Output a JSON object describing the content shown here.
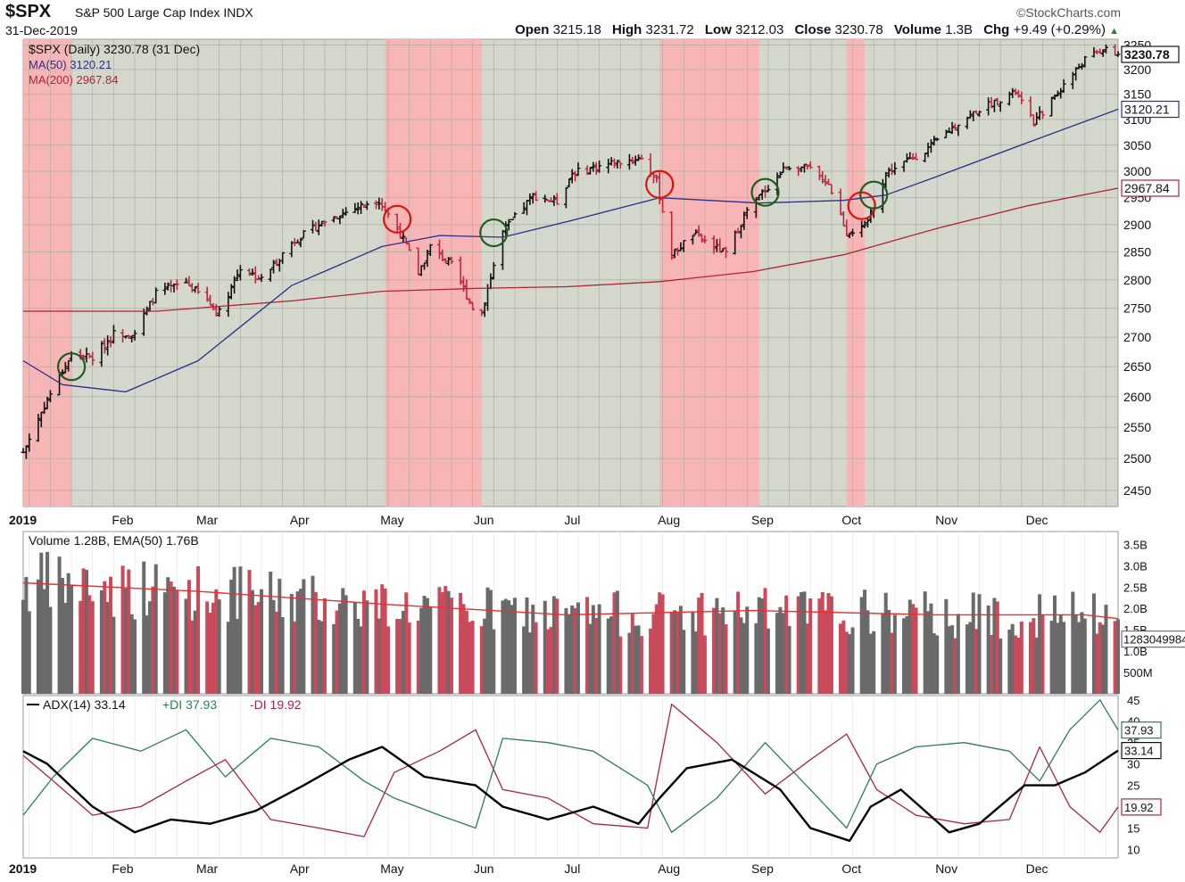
{
  "header": {
    "symbol": "$SPX",
    "name": "S&P 500 Large Cap Index",
    "exchange": "INDX",
    "date": "31-Dec-2019",
    "brand": "©StockCharts.com",
    "open_label": "Open",
    "open": "3215.18",
    "high_label": "High",
    "high": "3231.72",
    "low_label": "Low",
    "low": "3212.03",
    "close_label": "Close",
    "close": "3230.78",
    "volume_label": "Volume",
    "volume": "1.3B",
    "chg_label": "Chg",
    "chg": "+9.49 (+0.29%)"
  },
  "colors": {
    "panel_bg": "#d4d8cc",
    "red_band": "#f7b5b5",
    "up": "#111111",
    "down": "#c0283c",
    "ma50": "#2a2f8a",
    "ma200": "#b22234",
    "adx": "#000000",
    "plus_di": "#2e7d4f",
    "minus_di": "#a3234f",
    "vol_up": "#6a6a6a",
    "vol_down": "#c94a5a",
    "ema": "#e53030"
  },
  "chart_data": [
    {
      "type": "ohlc",
      "legend": [
        "$SPX (Daily) 3230.78 (31 Dec)",
        "MA(50) 3120.21",
        "MA(200) 2967.84"
      ],
      "x_labels": [
        "2019",
        "Feb",
        "Mar",
        "Apr",
        "May",
        "Jun",
        "Jul",
        "Aug",
        "Sep",
        "Oct",
        "Nov",
        "Dec"
      ],
      "y_ticks": [
        2450,
        2500,
        2550,
        2600,
        2650,
        2700,
        2750,
        2800,
        2850,
        2900,
        2950,
        3000,
        3050,
        3100,
        3150,
        3200,
        3250
      ],
      "ylim": [
        2425,
        3262
      ],
      "scale": "log",
      "last_price_tag": "3230.78",
      "ma50_tag": "3120.21",
      "ma200_tag": "2967.84",
      "close_series": [
        [
          "2019-01-02",
          2510
        ],
        [
          "2019-01-04",
          2532
        ],
        [
          "2019-01-10",
          2596
        ],
        [
          "2019-01-18",
          2670
        ],
        [
          "2019-01-25",
          2665
        ],
        [
          "2019-02-01",
          2706
        ],
        [
          "2019-02-08",
          2708
        ],
        [
          "2019-02-15",
          2776
        ],
        [
          "2019-02-25",
          2796
        ],
        [
          "2019-03-08",
          2743
        ],
        [
          "2019-03-15",
          2822
        ],
        [
          "2019-03-22",
          2800
        ],
        [
          "2019-04-01",
          2867
        ],
        [
          "2019-04-12",
          2907
        ],
        [
          "2019-04-26",
          2940
        ],
        [
          "2019-04-30",
          2945
        ],
        [
          "2019-05-07",
          2884
        ],
        [
          "2019-05-13",
          2812
        ],
        [
          "2019-05-17",
          2860
        ],
        [
          "2019-05-24",
          2826
        ],
        [
          "2019-05-31",
          2752
        ],
        [
          "2019-06-03",
          2745
        ],
        [
          "2019-06-10",
          2886
        ],
        [
          "2019-06-20",
          2954
        ],
        [
          "2019-06-28",
          2942
        ],
        [
          "2019-07-03",
          2996
        ],
        [
          "2019-07-15",
          3014
        ],
        [
          "2019-07-26",
          3026
        ],
        [
          "2019-07-31",
          2980
        ],
        [
          "2019-08-05",
          2844
        ],
        [
          "2019-08-12",
          2883
        ],
        [
          "2019-08-23",
          2847
        ],
        [
          "2019-08-30",
          2926
        ],
        [
          "2019-09-12",
          3009
        ],
        [
          "2019-09-19",
          3006
        ],
        [
          "2019-09-26",
          2977
        ],
        [
          "2019-10-02",
          2887
        ],
        [
          "2019-10-08",
          2893
        ],
        [
          "2019-10-15",
          2996
        ],
        [
          "2019-10-28",
          3039
        ],
        [
          "2019-11-08",
          3093
        ],
        [
          "2019-11-15",
          3120
        ],
        [
          "2019-11-27",
          3154
        ],
        [
          "2019-12-03",
          3093
        ],
        [
          "2019-12-13",
          3169
        ],
        [
          "2019-12-20",
          3221
        ],
        [
          "2019-12-26",
          3240
        ],
        [
          "2019-12-31",
          3230.78
        ]
      ],
      "ma50_series": [
        [
          "2019-01-02",
          2660
        ],
        [
          "2019-01-15",
          2620
        ],
        [
          "2019-02-05",
          2608
        ],
        [
          "2019-03-01",
          2660
        ],
        [
          "2019-04-01",
          2790
        ],
        [
          "2019-05-01",
          2860
        ],
        [
          "2019-05-20",
          2880
        ],
        [
          "2019-06-10",
          2877
        ],
        [
          "2019-07-01",
          2905
        ],
        [
          "2019-08-01",
          2950
        ],
        [
          "2019-09-03",
          2940
        ],
        [
          "2019-10-01",
          2945
        ],
        [
          "2019-10-15",
          2955
        ],
        [
          "2019-11-01",
          2990
        ],
        [
          "2019-12-01",
          3055
        ],
        [
          "2019-12-31",
          3120.21
        ]
      ],
      "ma200_series": [
        [
          "2019-01-02",
          2745
        ],
        [
          "2019-02-15",
          2745
        ],
        [
          "2019-04-01",
          2763
        ],
        [
          "2019-05-01",
          2780
        ],
        [
          "2019-06-01",
          2785
        ],
        [
          "2019-07-01",
          2788
        ],
        [
          "2019-08-01",
          2797
        ],
        [
          "2019-09-01",
          2815
        ],
        [
          "2019-10-01",
          2845
        ],
        [
          "2019-11-01",
          2893
        ],
        [
          "2019-12-01",
          2935
        ],
        [
          "2019-12-31",
          2967.84
        ]
      ],
      "red_bands": [
        [
          "2019-01-02",
          "2019-01-18"
        ],
        [
          "2019-05-02",
          "2019-06-03"
        ],
        [
          "2019-08-01",
          "2019-09-03"
        ],
        [
          "2019-10-02",
          "2019-10-08"
        ]
      ],
      "circles": [
        {
          "date": "2019-01-18",
          "price": 2650,
          "color": "green"
        },
        {
          "date": "2019-05-06",
          "price": 2910,
          "color": "red"
        },
        {
          "date": "2019-06-07",
          "price": 2885,
          "color": "green"
        },
        {
          "date": "2019-08-01",
          "price": 2975,
          "color": "red"
        },
        {
          "date": "2019-09-05",
          "price": 2960,
          "color": "green"
        },
        {
          "date": "2019-10-07",
          "price": 2935,
          "color": "red"
        },
        {
          "date": "2019-10-11",
          "price": 2955,
          "color": "green"
        }
      ]
    },
    {
      "type": "bar",
      "legend": [
        "Volume 1.28B, EMA(50) 1.76B"
      ],
      "y_ticks": [
        "500M",
        "1.0B",
        "1.5B",
        "2.0B",
        "2.5B",
        "3.0B",
        "3.5B"
      ],
      "ylim": [
        0,
        3.8
      ],
      "unit": "billions",
      "last_tag": "1283049984",
      "ema_series": [
        [
          "2019-01-02",
          2.6
        ],
        [
          "2019-03-01",
          2.4
        ],
        [
          "2019-05-01",
          2.1
        ],
        [
          "2019-07-01",
          1.85
        ],
        [
          "2019-09-01",
          1.95
        ],
        [
          "2019-11-01",
          1.85
        ],
        [
          "2019-12-20",
          1.85
        ],
        [
          "2019-12-31",
          1.76
        ]
      ]
    },
    {
      "type": "line",
      "legend": [
        "ADX(14) 33.14",
        "+DI 37.93",
        "-DI 19.92"
      ],
      "y_ticks": [
        10,
        15,
        20,
        25,
        30,
        35,
        40,
        45
      ],
      "ylim": [
        8,
        46
      ],
      "adx_tag": "33.14",
      "plus_di_tag": "37.93",
      "minus_di_tag": "19.92",
      "adx_series": [
        [
          "2019-01-02",
          33
        ],
        [
          "2019-01-10",
          30
        ],
        [
          "2019-01-25",
          20
        ],
        [
          "2019-02-08",
          14
        ],
        [
          "2019-02-20",
          17
        ],
        [
          "2019-03-05",
          16
        ],
        [
          "2019-03-20",
          19
        ],
        [
          "2019-04-05",
          25
        ],
        [
          "2019-04-20",
          31
        ],
        [
          "2019-05-01",
          34
        ],
        [
          "2019-05-15",
          27
        ],
        [
          "2019-06-01",
          25
        ],
        [
          "2019-06-10",
          20
        ],
        [
          "2019-06-25",
          17
        ],
        [
          "2019-07-10",
          20
        ],
        [
          "2019-07-25",
          16
        ],
        [
          "2019-08-01",
          22
        ],
        [
          "2019-08-10",
          29
        ],
        [
          "2019-08-25",
          31
        ],
        [
          "2019-09-10",
          24
        ],
        [
          "2019-09-20",
          15
        ],
        [
          "2019-10-03",
          12
        ],
        [
          "2019-10-10",
          20
        ],
        [
          "2019-10-20",
          24
        ],
        [
          "2019-11-05",
          14
        ],
        [
          "2019-11-15",
          16
        ],
        [
          "2019-11-30",
          25
        ],
        [
          "2019-12-10",
          25
        ],
        [
          "2019-12-20",
          28
        ],
        [
          "2019-12-31",
          33.14
        ]
      ],
      "plus_di_series": [
        [
          "2019-01-02",
          18
        ],
        [
          "2019-01-12",
          27
        ],
        [
          "2019-01-25",
          36
        ],
        [
          "2019-02-10",
          33
        ],
        [
          "2019-02-25",
          38
        ],
        [
          "2019-03-10",
          27
        ],
        [
          "2019-03-25",
          36
        ],
        [
          "2019-04-10",
          34
        ],
        [
          "2019-04-25",
          26
        ],
        [
          "2019-05-05",
          22
        ],
        [
          "2019-05-20",
          18
        ],
        [
          "2019-06-01",
          15
        ],
        [
          "2019-06-10",
          36
        ],
        [
          "2019-06-25",
          35
        ],
        [
          "2019-07-10",
          33
        ],
        [
          "2019-07-28",
          25
        ],
        [
          "2019-08-05",
          14
        ],
        [
          "2019-08-20",
          22
        ],
        [
          "2019-09-05",
          35
        ],
        [
          "2019-09-20",
          24
        ],
        [
          "2019-10-02",
          15
        ],
        [
          "2019-10-12",
          30
        ],
        [
          "2019-10-25",
          34
        ],
        [
          "2019-11-10",
          35
        ],
        [
          "2019-11-25",
          33
        ],
        [
          "2019-12-05",
          26
        ],
        [
          "2019-12-15",
          38
        ],
        [
          "2019-12-25",
          45
        ],
        [
          "2019-12-31",
          37.93
        ]
      ],
      "minus_di_series": [
        [
          "2019-01-02",
          32
        ],
        [
          "2019-01-12",
          26
        ],
        [
          "2019-01-25",
          18
        ],
        [
          "2019-02-10",
          20
        ],
        [
          "2019-02-25",
          26
        ],
        [
          "2019-03-10",
          31
        ],
        [
          "2019-03-25",
          17
        ],
        [
          "2019-04-10",
          15
        ],
        [
          "2019-04-25",
          13
        ],
        [
          "2019-05-05",
          28
        ],
        [
          "2019-05-20",
          33
        ],
        [
          "2019-06-01",
          38
        ],
        [
          "2019-06-10",
          24
        ],
        [
          "2019-06-25",
          22
        ],
        [
          "2019-07-10",
          16
        ],
        [
          "2019-07-28",
          15
        ],
        [
          "2019-08-05",
          44
        ],
        [
          "2019-08-20",
          35
        ],
        [
          "2019-09-05",
          23
        ],
        [
          "2019-09-20",
          31
        ],
        [
          "2019-10-02",
          37
        ],
        [
          "2019-10-12",
          24
        ],
        [
          "2019-10-25",
          18
        ],
        [
          "2019-11-10",
          16
        ],
        [
          "2019-11-25",
          17
        ],
        [
          "2019-12-05",
          34
        ],
        [
          "2019-12-15",
          20
        ],
        [
          "2019-12-25",
          14
        ],
        [
          "2019-12-31",
          19.92
        ]
      ]
    }
  ]
}
